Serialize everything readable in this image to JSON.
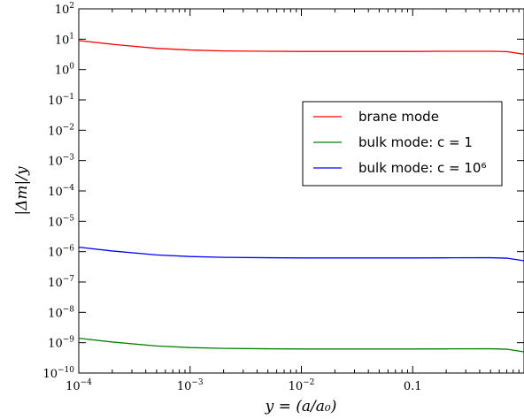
{
  "chart_data": {
    "type": "line",
    "xscale": "log",
    "yscale": "log",
    "xlim": [
      0.0001,
      1
    ],
    "ylim": [
      1e-10,
      100
    ],
    "xlabel": "y = (a/a₀)",
    "ylabel": "|Δm|/y",
    "grid": false,
    "legend_position": "center-right",
    "x_ticks": [
      {
        "value": 0.0001,
        "base": "10",
        "exp": "−4"
      },
      {
        "value": 0.001,
        "base": "10",
        "exp": "−3"
      },
      {
        "value": 0.01,
        "base": "10",
        "exp": "−2"
      },
      {
        "value": 0.1,
        "base": "0.1",
        "exp": ""
      }
    ],
    "y_ticks": [
      {
        "value": 100,
        "base": "10",
        "exp": "2"
      },
      {
        "value": 10,
        "base": "10",
        "exp": "1"
      },
      {
        "value": 1,
        "base": "10",
        "exp": "0"
      },
      {
        "value": 0.1,
        "base": "10",
        "exp": "−1"
      },
      {
        "value": 0.01,
        "base": "10",
        "exp": "−2"
      },
      {
        "value": 0.001,
        "base": "10",
        "exp": "−3"
      },
      {
        "value": 0.0001,
        "base": "10",
        "exp": "−4"
      },
      {
        "value": 1e-05,
        "base": "10",
        "exp": "−5"
      },
      {
        "value": 1e-06,
        "base": "10",
        "exp": "−6"
      },
      {
        "value": 1e-07,
        "base": "10",
        "exp": "−7"
      },
      {
        "value": 1e-08,
        "base": "10",
        "exp": "−8"
      },
      {
        "value": 1e-09,
        "base": "10",
        "exp": "−9"
      },
      {
        "value": 1e-10,
        "base": "10",
        "exp": "−10"
      }
    ],
    "series": [
      {
        "name": "brane mode",
        "color": "#ff0000",
        "x": [
          0.0001,
          0.0002,
          0.0005,
          0.001,
          0.002,
          0.005,
          0.01,
          0.02,
          0.05,
          0.1,
          0.2,
          0.5,
          0.7,
          1
        ],
        "y": [
          9,
          6.8,
          5.0,
          4.4,
          4.1,
          4.0,
          3.95,
          3.95,
          3.95,
          3.95,
          4.0,
          4.0,
          3.9,
          3.2
        ]
      },
      {
        "name": "bulk mode: c = 1",
        "color": "#008000",
        "x": [
          0.0001,
          0.0002,
          0.0005,
          0.001,
          0.002,
          0.005,
          0.01,
          0.02,
          0.05,
          0.1,
          0.2,
          0.5,
          0.7,
          1
        ],
        "y": [
          1.4e-09,
          1.05e-09,
          7.8e-10,
          6.9e-10,
          6.5e-10,
          6.3e-10,
          6.2e-10,
          6.2e-10,
          6.2e-10,
          6.2e-10,
          6.25e-10,
          6.3e-10,
          6.1e-10,
          5e-10
        ]
      },
      {
        "name": "bulk mode: c = 10⁶",
        "color": "#0000ff",
        "x": [
          0.0001,
          0.0002,
          0.0005,
          0.001,
          0.002,
          0.005,
          0.01,
          0.02,
          0.05,
          0.1,
          0.2,
          0.5,
          0.7,
          1
        ],
        "y": [
          1.4e-06,
          1.05e-06,
          7.8e-07,
          6.9e-07,
          6.5e-07,
          6.3e-07,
          6.2e-07,
          6.2e-07,
          6.2e-07,
          6.2e-07,
          6.25e-07,
          6.3e-07,
          6.1e-07,
          5e-07
        ]
      }
    ]
  }
}
